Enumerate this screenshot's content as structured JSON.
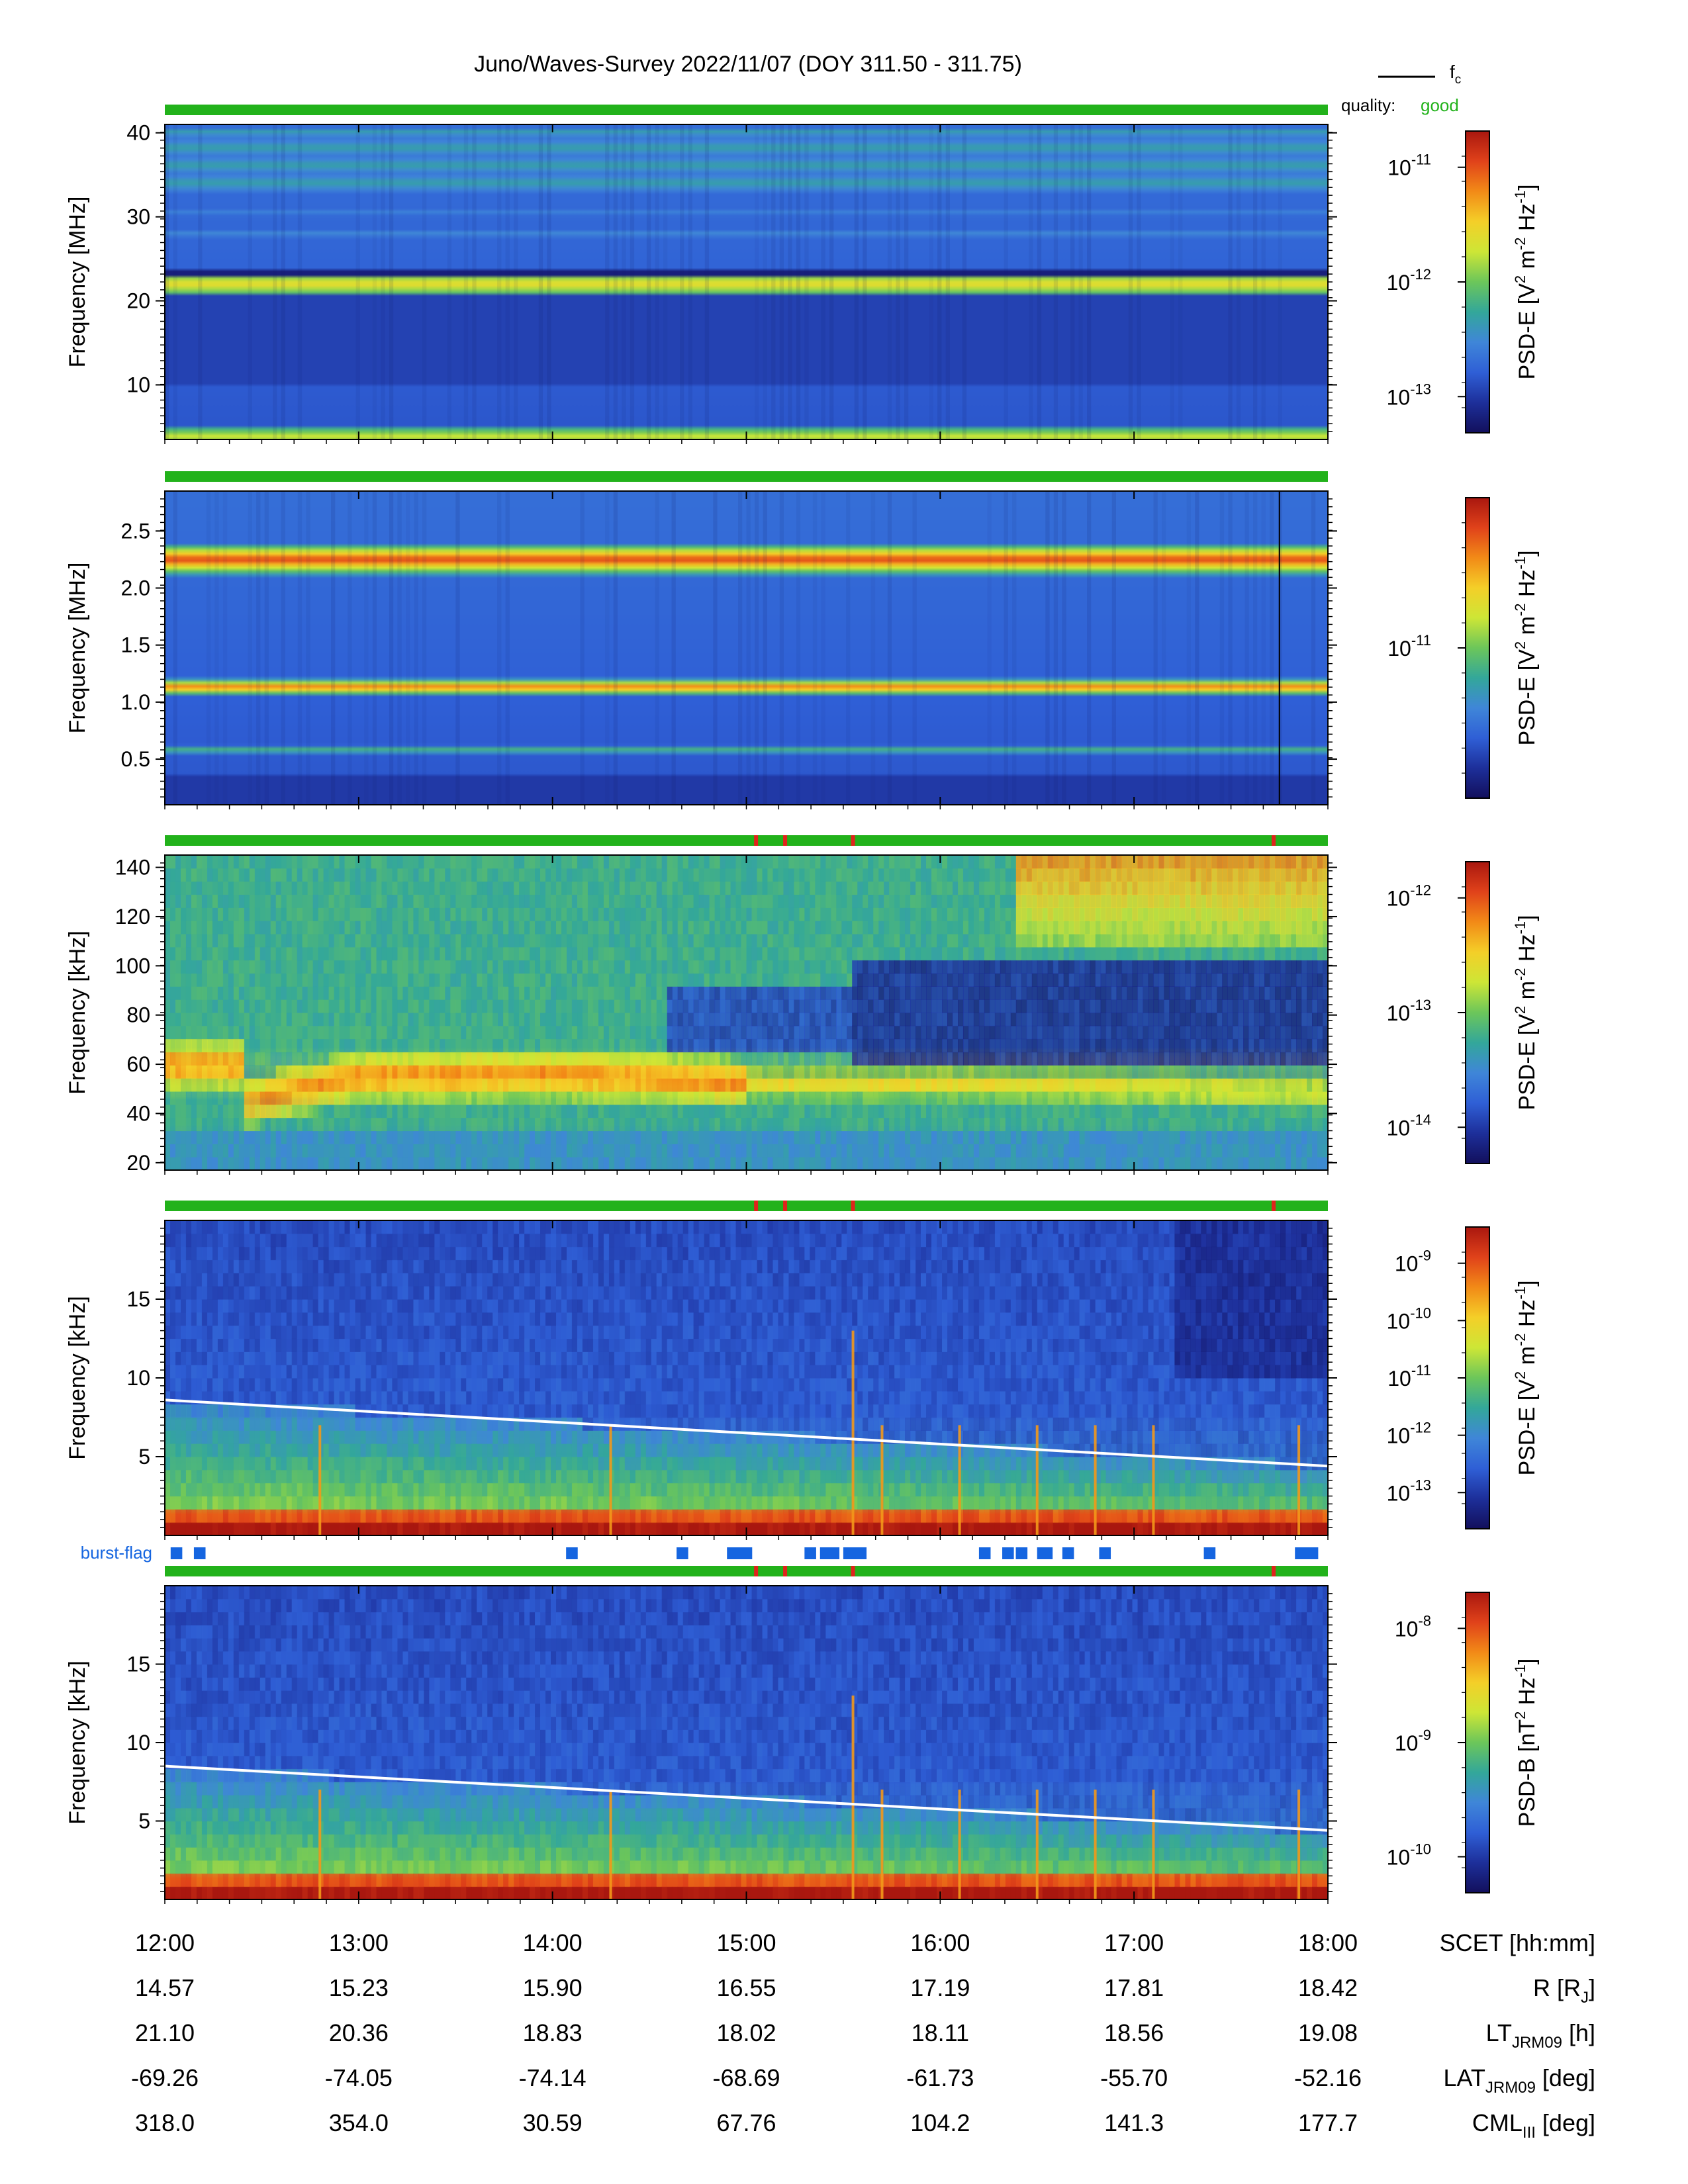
{
  "title": "Juno/Waves-Survey  2022/11/07 (DOY 311.50 - 311.75)",
  "legend": {
    "line_label": "f",
    "line_label_sub": "c",
    "quality_label": "quality:",
    "quality_value": "good"
  },
  "colors": {
    "quality_good": "#22b21b",
    "quality_flag": "#e0231b",
    "burst_flag": "#1565e0",
    "fc_line": "#ffffff",
    "colormap": [
      "#120f5c",
      "#1d2f9a",
      "#2f5fd6",
      "#3f86d8",
      "#33a79a",
      "#6cc65a",
      "#cde636",
      "#f4cf28",
      "#f28a17",
      "#e0421a",
      "#a9170f"
    ]
  },
  "burst_flag_label": "burst-flag",
  "chart_data": [
    {
      "type": "heatmap",
      "panel": 1,
      "ylabel": "Frequency [MHz]",
      "yticks": [
        "10",
        "20",
        "30",
        "40"
      ],
      "ylim": [
        3.5,
        41
      ],
      "colorbar": {
        "label": "PSD-E [V",
        "label_parts": [
          "PSD-E [V",
          "2",
          " m",
          "-2",
          " Hz",
          "-1",
          "]"
        ],
        "ticks": [
          {
            "base": "10",
            "exp": "-11"
          },
          {
            "base": "10",
            "exp": "-12"
          },
          {
            "base": "10",
            "exp": "-13"
          }
        ],
        "scale": "log",
        "range": [
          "1e-14",
          "1e-10"
        ]
      },
      "bands": [
        {
          "freq": 22,
          "level": 0.68
        },
        {
          "freq": 30.5,
          "level": 0.3
        },
        {
          "freq": 28,
          "level": 0.32
        },
        {
          "freq": 36,
          "level": 0.32
        },
        {
          "freq": 3.8,
          "level": 0.62
        }
      ],
      "quality": "good",
      "quality_flags_hours": []
    },
    {
      "type": "heatmap",
      "panel": 2,
      "ylabel": "Frequency [MHz]",
      "yticks": [
        "0.5",
        "1.0",
        "1.5",
        "2.0",
        "2.5"
      ],
      "ylim": [
        0.1,
        2.85
      ],
      "colorbar": {
        "label": "PSD-E [V",
        "label_parts": [
          "PSD-E [V",
          "2",
          " m",
          "-2",
          " Hz",
          "-1",
          "]"
        ],
        "ticks": [
          {
            "base": "10",
            "exp": "-11"
          }
        ],
        "scale": "log"
      },
      "bands": [
        {
          "freq": 2.25,
          "level": 0.92
        },
        {
          "freq": 1.13,
          "level": 0.86
        },
        {
          "freq": 0.58,
          "level": 0.5
        }
      ],
      "quality": "good",
      "quality_flags_hours": []
    },
    {
      "type": "heatmap",
      "panel": 3,
      "ylabel": "Frequency [kHz]",
      "yticks": [
        "20",
        "40",
        "60",
        "80",
        "100",
        "120",
        "140"
      ],
      "ylim": [
        17,
        145
      ],
      "colorbar": {
        "label": "PSD-E [V",
        "label_parts": [
          "PSD-E [V",
          "2",
          " m",
          "-2",
          " Hz",
          "-1",
          "]"
        ],
        "ticks": [
          {
            "base": "10",
            "exp": "-12"
          },
          {
            "base": "10",
            "exp": "-13"
          },
          {
            "base": "10",
            "exp": "-14"
          }
        ],
        "scale": "log"
      },
      "emission_band_khz": {
        "hours": [
          12.4,
          13,
          14,
          15,
          16,
          17,
          18
        ],
        "center": [
          44,
          55,
          56,
          52,
          52,
          50,
          48
        ]
      },
      "quality": "good",
      "quality_flags_hours": [
        15.05,
        15.2,
        15.55,
        17.72
      ]
    },
    {
      "type": "heatmap",
      "panel": 4,
      "ylabel": "Frequency [kHz]",
      "yticks": [
        "5",
        "10",
        "15"
      ],
      "ylim": [
        0,
        20
      ],
      "colorbar": {
        "label": "PSD-E [V",
        "label_parts": [
          "PSD-E [V",
          "2",
          " m",
          "-2",
          " Hz",
          "-1",
          "]"
        ],
        "ticks": [
          {
            "base": "10",
            "exp": "-9"
          },
          {
            "base": "10",
            "exp": "-10"
          },
          {
            "base": "10",
            "exp": "-11"
          },
          {
            "base": "10",
            "exp": "-12"
          },
          {
            "base": "10",
            "exp": "-13"
          }
        ],
        "scale": "log"
      },
      "fc_khz": {
        "hours": [
          12,
          18
        ],
        "values": [
          8.6,
          4.4
        ]
      },
      "quality": "good",
      "quality_flags_hours": [
        15.05,
        15.2,
        15.55,
        17.72
      ]
    },
    {
      "type": "heatmap",
      "panel": 5,
      "ylabel": "Frequency [kHz]",
      "yticks": [
        "5",
        "10",
        "15"
      ],
      "ylim": [
        0,
        20
      ],
      "colorbar": {
        "label": "PSD-B [nT",
        "label_parts": [
          "PSD-B [nT",
          "2",
          " Hz",
          "-1",
          "]"
        ],
        "ticks": [
          {
            "base": "10",
            "exp": "-8"
          },
          {
            "base": "10",
            "exp": "-9"
          },
          {
            "base": "10",
            "exp": "-10"
          }
        ],
        "scale": "log"
      },
      "fc_khz": {
        "hours": [
          12,
          18
        ],
        "values": [
          8.5,
          4.4
        ]
      },
      "quality": "good",
      "quality_flags_hours": [
        15.05,
        15.2,
        15.55,
        17.72
      ]
    }
  ],
  "burst_flag_segments_hours": [
    [
      12.03,
      12.09
    ],
    [
      12.15,
      12.21
    ],
    [
      14.07,
      14.13
    ],
    [
      14.64,
      14.7
    ],
    [
      14.9,
      15.03
    ],
    [
      15.3,
      15.36
    ],
    [
      15.38,
      15.48
    ],
    [
      15.5,
      15.62
    ],
    [
      16.2,
      16.26
    ],
    [
      16.32,
      16.38
    ],
    [
      16.39,
      16.45
    ],
    [
      16.5,
      16.58
    ],
    [
      16.63,
      16.69
    ],
    [
      16.82,
      16.88
    ],
    [
      17.36,
      17.42
    ],
    [
      17.83,
      17.95
    ]
  ],
  "x_axis": {
    "ticks_hours": [
      12,
      13,
      14,
      15,
      16,
      17,
      18
    ],
    "rows": [
      {
        "values": [
          "12:00",
          "13:00",
          "14:00",
          "15:00",
          "16:00",
          "17:00",
          "18:00"
        ],
        "label": "SCET [hh:mm]"
      },
      {
        "values": [
          "14.57",
          "15.23",
          "15.90",
          "16.55",
          "17.19",
          "17.81",
          "18.42"
        ],
        "label": "R [R",
        "label_sub": "J",
        "label_end": "]"
      },
      {
        "values": [
          "21.10",
          "20.36",
          "18.83",
          "18.02",
          "18.11",
          "18.56",
          "19.08"
        ],
        "label": "LT",
        "label_sub": "JRM09",
        "label_end": " [h]"
      },
      {
        "values": [
          "-69.26",
          "-74.05",
          "-74.14",
          "-68.69",
          "-61.73",
          "-55.70",
          "-52.16"
        ],
        "label": "LAT",
        "label_sub": "JRM09",
        "label_end": " [deg]"
      },
      {
        "values": [
          "318.0",
          "354.0",
          "30.59",
          "67.76",
          "104.2",
          "141.3",
          "177.7"
        ],
        "label": "CML",
        "label_sub": "III",
        "label_end": " [deg]"
      }
    ]
  }
}
